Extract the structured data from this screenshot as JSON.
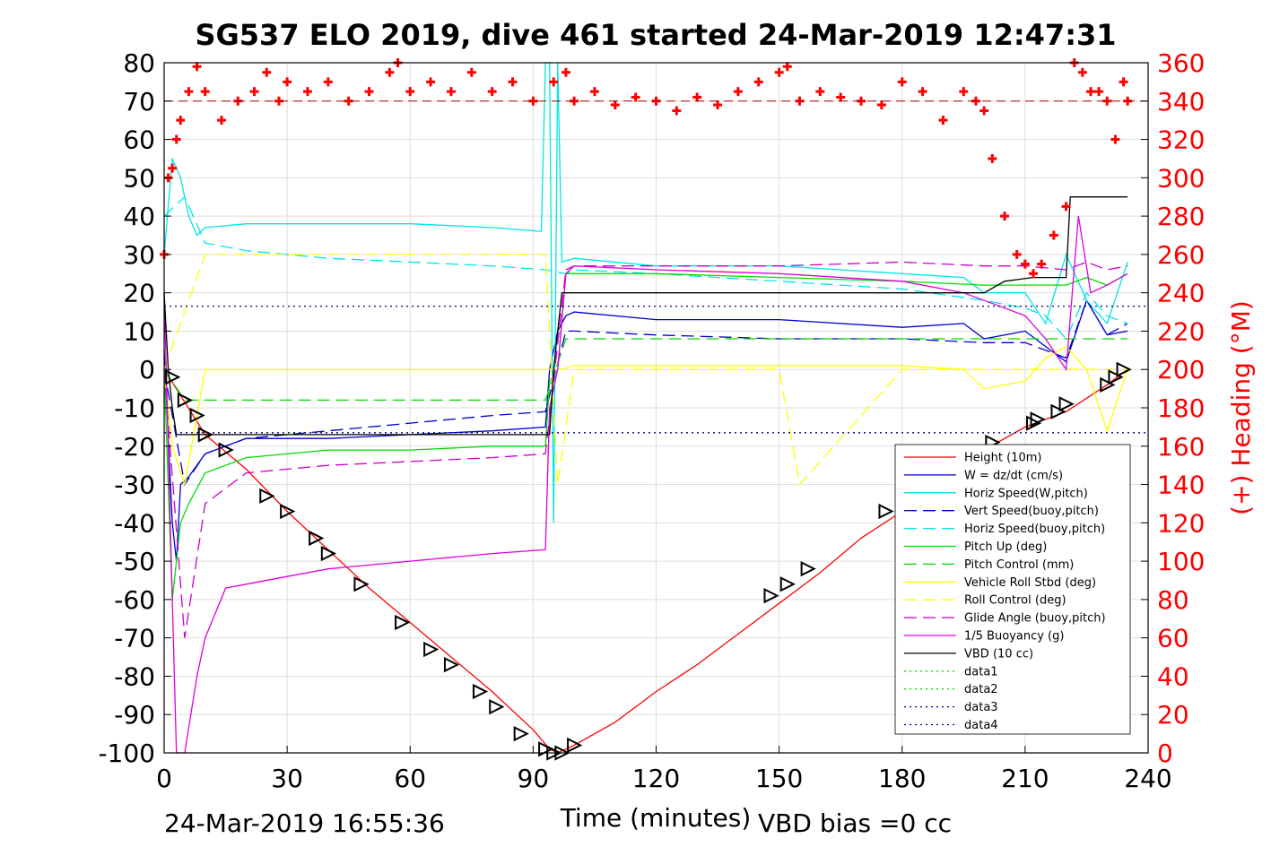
{
  "chart_data": {
    "type": "line",
    "title": "SG537 ELO 2019, dive 461 started 24-Mar-2019 12:47:31",
    "xlabel": "Time (minutes)",
    "ylabel_right": "(+) Heading (°M)",
    "xlim": [
      0,
      240
    ],
    "ylim_left": [
      -100,
      80
    ],
    "ylim_right": [
      0,
      360
    ],
    "x_ticks": [
      "0",
      "30",
      "60",
      "90",
      "120",
      "150",
      "180",
      "210",
      "240"
    ],
    "y_left_ticks": [
      "80",
      "70",
      "60",
      "50",
      "40",
      "30",
      "20",
      "10",
      "0",
      "-10",
      "-20",
      "-30",
      "-40",
      "-50",
      "-60",
      "-70",
      "-80",
      "-90",
      "-100"
    ],
    "y_right_ticks": [
      "360",
      "340",
      "320",
      "300",
      "280",
      "260",
      "240",
      "220",
      "200",
      "180",
      "160",
      "140",
      "120",
      "100",
      "80",
      "60",
      "40",
      "20",
      "0"
    ],
    "grid": true,
    "legend_placement": "bottom-right",
    "colors": {
      "height": "#ff0000",
      "w": "#0000cc",
      "horiz_speed": "#00e5e5",
      "pitch_up": "#00dd00",
      "pitch_control": "#00dd00",
      "roll": "#ffff00",
      "glide_angle": "#cc00cc",
      "buoyancy": "#dd00dd",
      "vbd": "#000000",
      "heading": "#ff0000",
      "data_dotted_blue": "#000080"
    },
    "series": [
      {
        "name": "Height (10m)",
        "style": "solid",
        "color": "#ff0000",
        "x": [
          0,
          10,
          20,
          30,
          40,
          50,
          60,
          70,
          80,
          90,
          94,
          96,
          98,
          100,
          110,
          120,
          130,
          140,
          150,
          160,
          170,
          180,
          190,
          200,
          210,
          220,
          230,
          235
        ],
        "y": [
          0,
          -17,
          -26,
          -37,
          -47,
          -57,
          -66,
          -75,
          -84,
          -94,
          -99,
          -100,
          -99,
          -98,
          -92,
          -84,
          -77,
          -69,
          -61,
          -53,
          -44,
          -37,
          -29,
          -21,
          -15,
          -11,
          -4,
          0
        ]
      },
      {
        "name": "W = dz/dt (cm/s)",
        "style": "solid",
        "color": "#0000cc",
        "x": [
          0,
          2,
          3,
          4,
          6,
          10,
          20,
          40,
          60,
          80,
          93,
          94,
          96,
          98,
          100,
          120,
          150,
          180,
          195,
          200,
          210,
          215,
          220,
          225,
          230,
          235
        ],
        "y": [
          5,
          -40,
          -50,
          -30,
          -28,
          -22,
          -18,
          -18,
          -17,
          -16,
          -15,
          0,
          10,
          14,
          15,
          13,
          13,
          11,
          12,
          8,
          10,
          6,
          2,
          18,
          9,
          10
        ]
      },
      {
        "name": "Horiz Speed(W,pitch)",
        "style": "solid",
        "color": "#00e5e5",
        "x": [
          0,
          2,
          4,
          6,
          8,
          10,
          20,
          40,
          60,
          80,
          92,
          93,
          94,
          95,
          96,
          97,
          100,
          120,
          150,
          180,
          195,
          200,
          210,
          215,
          220,
          225,
          230,
          235
        ],
        "y": [
          30,
          55,
          50,
          40,
          35,
          37,
          38,
          38,
          38,
          37,
          36,
          80,
          80,
          -40,
          80,
          28,
          29,
          27,
          27,
          25,
          24,
          20,
          20,
          12,
          30,
          18,
          12,
          28
        ]
      },
      {
        "name": "Vert Speed(buoy,pitch)",
        "style": "dashed",
        "color": "#0000cc",
        "x": [
          0,
          5,
          10,
          20,
          40,
          60,
          80,
          93,
          98,
          100,
          120,
          150,
          180,
          200,
          210,
          215,
          220,
          225,
          230,
          235
        ],
        "y": [
          0,
          -30,
          -22,
          -18,
          -16,
          -14,
          -12,
          -11,
          10,
          10,
          9,
          8,
          8,
          7,
          7,
          5,
          3,
          18,
          9,
          12
        ]
      },
      {
        "name": "Horiz Speed(buoy,pitch)",
        "style": "dashed",
        "color": "#00e5e5",
        "x": [
          0,
          5,
          10,
          20,
          40,
          60,
          80,
          93,
          98,
          100,
          120,
          150,
          180,
          200,
          210,
          215,
          220,
          225,
          230,
          235
        ],
        "y": [
          40,
          45,
          33,
          31,
          29,
          28,
          27,
          26,
          25,
          26,
          25,
          23,
          21,
          18,
          16,
          14,
          8,
          20,
          14,
          12
        ]
      },
      {
        "name": "Pitch Up (deg)",
        "style": "solid",
        "color": "#00dd00",
        "x": [
          0,
          2,
          4,
          6,
          10,
          20,
          40,
          60,
          80,
          93,
          94,
          96,
          98,
          100,
          120,
          150,
          180,
          200,
          210,
          220,
          225,
          230,
          235
        ],
        "y": [
          0,
          -60,
          -40,
          -35,
          -27,
          -23,
          -21,
          -21,
          -20,
          -20,
          -3,
          0,
          25,
          25,
          25,
          24,
          23,
          22,
          22,
          22,
          24,
          22,
          25
        ]
      },
      {
        "name": "Pitch Control (mm)",
        "style": "dashed",
        "color": "#00dd00",
        "x": [
          0,
          5,
          10,
          40,
          60,
          80,
          93,
          98,
          100,
          150,
          180,
          200,
          210,
          220,
          235
        ],
        "y": [
          0,
          -8,
          -8,
          -8,
          -8,
          -8,
          -8,
          8,
          8,
          8,
          8,
          8,
          8,
          8,
          8
        ]
      },
      {
        "name": "Vehicle Roll Stbd (deg)",
        "style": "solid",
        "color": "#ffff00",
        "x": [
          0,
          2,
          5,
          10,
          15,
          20,
          30,
          40,
          50,
          60,
          70,
          80,
          90,
          93,
          95,
          97,
          100,
          120,
          150,
          180,
          195,
          200,
          210,
          215,
          220,
          225,
          230,
          235
        ],
        "y": [
          0,
          -20,
          -30,
          0,
          0,
          0,
          0,
          0,
          0,
          0,
          0,
          0,
          0,
          0,
          0,
          0,
          1,
          1,
          1,
          1,
          0,
          -5,
          -3,
          3,
          6,
          0,
          -16,
          0
        ]
      },
      {
        "name": "Roll Control (deg)",
        "style": "dashed",
        "color": "#ffff00",
        "x": [
          0,
          10,
          20,
          40,
          60,
          80,
          93,
          96,
          100,
          150,
          155,
          180,
          200,
          210,
          220,
          235
        ],
        "y": [
          0,
          30,
          30,
          30,
          30,
          30,
          30,
          -30,
          0,
          0,
          -30,
          0,
          0,
          0,
          0,
          0
        ]
      },
      {
        "name": "Glide Angle (buoy,pitch)",
        "style": "dashed",
        "color": "#cc00cc",
        "x": [
          0,
          5,
          10,
          20,
          40,
          60,
          80,
          93,
          98,
          100,
          120,
          150,
          180,
          200,
          210,
          220,
          225,
          230,
          235
        ],
        "y": [
          0,
          -70,
          -35,
          -27,
          -25,
          -24,
          -23,
          -22,
          26,
          27,
          27,
          27,
          28,
          27,
          27,
          26,
          28,
          26,
          27
        ]
      },
      {
        "name": "1/5 Buoyancy (g)",
        "style": "solid",
        "color": "#dd00dd",
        "x": [
          0,
          1,
          2,
          3,
          5,
          8,
          10,
          15,
          20,
          30,
          40,
          50,
          60,
          70,
          80,
          93,
          94,
          96,
          98,
          100,
          120,
          150,
          180,
          195,
          200,
          210,
          215,
          220,
          223,
          226,
          230,
          235
        ],
        "y": [
          20,
          -20,
          -60,
          -100,
          -100,
          -80,
          -70,
          -57,
          -56,
          -54,
          -52,
          -51,
          -50,
          -49,
          -48,
          -47,
          -10,
          0,
          25,
          27,
          26,
          25,
          23,
          20,
          18,
          14,
          8,
          0,
          40,
          20,
          22,
          25
        ]
      },
      {
        "name": "VBD (10 cc)",
        "style": "solid",
        "color": "#000000",
        "x": [
          0,
          1,
          2,
          3,
          94,
          95,
          96,
          97,
          100,
          200,
          205,
          212,
          220,
          221,
          235
        ],
        "y": [
          20,
          0,
          -10,
          -17,
          -17,
          0,
          10,
          20,
          20,
          20,
          23,
          24,
          24,
          45,
          45
        ]
      },
      {
        "name": "data1",
        "style": "dotted",
        "color": "#00dd00",
        "x": [],
        "y": []
      },
      {
        "name": "data2",
        "style": "dotted",
        "color": "#00dd00",
        "x": [],
        "y": []
      },
      {
        "name": "data3",
        "style": "dotted",
        "color": "#000080",
        "x": [
          0,
          240
        ],
        "y": [
          16.5,
          16.5
        ]
      },
      {
        "name": "data4",
        "style": "dotted",
        "color": "#000080",
        "x": [
          0,
          240
        ],
        "y": [
          -16.5,
          -16.5
        ]
      }
    ],
    "heading_series": {
      "name": "Heading",
      "axis": "right",
      "marker": "+",
      "color": "#ff0000",
      "x": [
        0,
        1,
        2,
        3,
        4,
        6,
        8,
        10,
        14,
        18,
        22,
        25,
        28,
        30,
        35,
        40,
        45,
        50,
        55,
        57,
        60,
        65,
        70,
        75,
        80,
        85,
        90,
        95,
        98,
        100,
        105,
        110,
        115,
        120,
        125,
        130,
        135,
        140,
        145,
        150,
        152,
        155,
        160,
        165,
        170,
        175,
        180,
        185,
        190,
        195,
        198,
        200,
        202,
        205,
        208,
        210,
        212,
        214,
        217,
        220,
        222,
        224,
        226,
        228,
        230,
        232,
        234,
        235
      ],
      "y": [
        260,
        300,
        305,
        320,
        330,
        345,
        358,
        345,
        330,
        340,
        345,
        355,
        340,
        350,
        345,
        350,
        340,
        345,
        355,
        360,
        345,
        350,
        345,
        355,
        345,
        350,
        340,
        350,
        355,
        340,
        345,
        338,
        342,
        340,
        335,
        342,
        338,
        345,
        350,
        355,
        358,
        340,
        345,
        342,
        340,
        338,
        350,
        345,
        330,
        345,
        340,
        335,
        310,
        280,
        260,
        255,
        250,
        255,
        270,
        285,
        360,
        355,
        345,
        345,
        340,
        320,
        350,
        340
      ]
    },
    "markers_series": {
      "name": "depth samples",
      "marker": "triangle",
      "color": "#000000",
      "x": [
        2,
        5,
        8,
        10,
        15,
        25,
        30,
        37,
        40,
        48,
        58,
        65,
        70,
        77,
        81,
        87,
        93,
        95,
        97,
        100,
        148,
        152,
        157,
        176,
        202,
        212,
        213,
        218,
        220,
        230,
        232,
        234
      ],
      "y": [
        -2,
        -8,
        -12,
        -17,
        -21,
        -33,
        -37,
        -44,
        -48,
        -56,
        -66,
        -73,
        -77,
        -84,
        -88,
        -95,
        -99,
        -100,
        -100,
        -98,
        -59,
        -56,
        -52,
        -37,
        -19,
        -14,
        -13,
        -11,
        -9,
        -4,
        -2,
        0
      ]
    }
  },
  "footer": {
    "start_time": "24-Mar-2019 16:55:36",
    "vbd_bias": "VBD bias =0 cc"
  }
}
